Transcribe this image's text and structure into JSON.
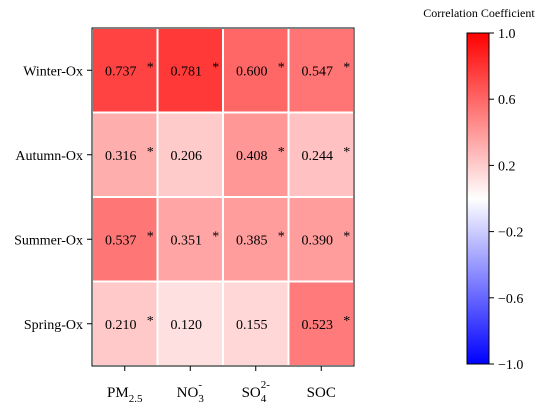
{
  "chart_data": {
    "type": "heatmap",
    "rows": [
      "Winter-Ox",
      "Autumn-Ox",
      "Summer-Ox",
      "Spring-Ox"
    ],
    "columns": [
      {
        "base": "PM",
        "sub": "2.5",
        "sup": ""
      },
      {
        "base": "NO",
        "sub": "3",
        "sup": "-"
      },
      {
        "base": "SO",
        "sub": "4",
        "sup": "2-"
      },
      {
        "base": "SOC",
        "sub": "",
        "sup": ""
      }
    ],
    "values": [
      [
        0.737,
        0.781,
        0.6,
        0.547
      ],
      [
        0.316,
        0.206,
        0.408,
        0.244
      ],
      [
        0.537,
        0.351,
        0.385,
        0.39
      ],
      [
        0.21,
        0.12,
        0.155,
        0.523
      ]
    ],
    "cell_labels": [
      [
        "0.737",
        "0.781",
        "0.600",
        "0.547"
      ],
      [
        "0.316",
        "0.206",
        "0.408",
        "0.244"
      ],
      [
        "0.537",
        "0.351",
        "0.385",
        "0.390"
      ],
      [
        "0.210",
        "0.120",
        "0.155",
        "0.523"
      ]
    ],
    "significant": [
      [
        true,
        true,
        true,
        true
      ],
      [
        true,
        false,
        true,
        true
      ],
      [
        true,
        true,
        true,
        true
      ],
      [
        true,
        false,
        false,
        true
      ]
    ],
    "significance_marker": "*",
    "colorbar": {
      "title": "Correlation Coefficient",
      "range": [
        -1.0,
        1.0
      ],
      "ticks": [
        "1.0",
        "0.6",
        "0.2",
        "−0.2",
        "−0.6",
        "−1.0"
      ],
      "tick_values": [
        1.0,
        0.6,
        0.2,
        -0.2,
        -0.6,
        -1.0
      ],
      "colormap": "blue-white-red",
      "low_color": "#0000ff",
      "mid_color": "#ffffff",
      "high_color": "#ff0000"
    },
    "grid": true,
    "grid_color": "#ffffff"
  }
}
